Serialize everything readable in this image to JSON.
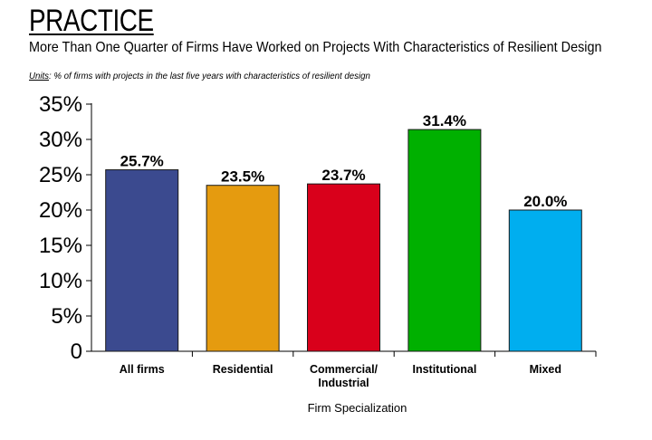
{
  "chart_data": {
    "type": "bar",
    "title": "PRACTICE",
    "subtitle": "More Than One Quarter of Firms Have Worked on Projects With Characteristics of Resilient Design",
    "units_label": "Units",
    "units_text": ": % of firms with projects in the last five years with characteristics of resilient design",
    "xlabel": "Firm Specialization",
    "ylabel": "",
    "ylim": [
      0,
      35
    ],
    "yticks": [
      0,
      5,
      10,
      15,
      20,
      25,
      30,
      35
    ],
    "ytick_labels": [
      "0",
      "5%",
      "10%",
      "15%",
      "20%",
      "25%",
      "30%",
      "35%"
    ],
    "categories": [
      {
        "lines": [
          "All firms"
        ]
      },
      {
        "lines": [
          "Residential"
        ]
      },
      {
        "lines": [
          "Commercial/",
          "Industrial"
        ]
      },
      {
        "lines": [
          "Institutional"
        ]
      },
      {
        "lines": [
          "Mixed"
        ]
      }
    ],
    "values": [
      25.7,
      23.5,
      23.7,
      31.4,
      20.0
    ],
    "data_labels": [
      "25.7%",
      "23.5%",
      "23.7%",
      "31.4%",
      "20.0%"
    ],
    "colors": [
      "#3b4a8f",
      "#e59b0f",
      "#d9001b",
      "#00b000",
      "#00aeef"
    ],
    "grid": false,
    "legend": "none"
  }
}
